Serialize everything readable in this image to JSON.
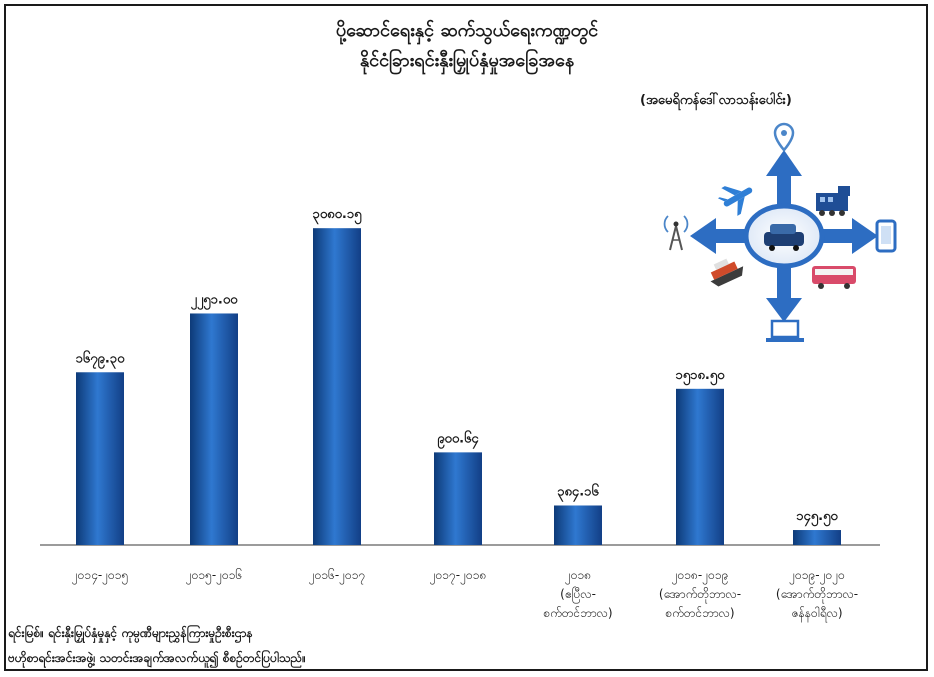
{
  "chart_data": {
    "type": "bar",
    "title_line1": "ပို့ဆောင်ရေးနှင့် ဆက်သွယ်ရေးကဏ္ဍတွင်",
    "title_line2": "နိုင်ငံခြားရင်းနှီးမြှုပ်နှံမှုအခြေအနေ",
    "unit": "(အမေရိကန်ဒေါ်လာသန်းပေါင်း)",
    "categories": [
      [
        "၂၀၁၄-၂၀၁၅"
      ],
      [
        "၂၀၁၅-၂၀၁၆"
      ],
      [
        "၂၀၁၆-၂၀၁၇"
      ],
      [
        "၂၀၁၇-၂၀၁၈"
      ],
      [
        "၂၀၁၈",
        "(ဧပြီလ-",
        "စက်တင်ဘာလ)"
      ],
      [
        "၂၀၁၈-၂၀၁၉",
        "(အောက်တိုဘာလ-",
        "စက်တင်ဘာလ)"
      ],
      [
        "၂၀၁၉-၂၀၂၀",
        "(အောက်တိုဘာလ-",
        "ဇန်နဝါရီလ)"
      ]
    ],
    "value_labels": [
      "၁၆၇၉.၃၀",
      "၂၂၅၁.၀၀",
      "၃၀၈၀.၁၅",
      "၉၀၀.၆၄",
      "၃၈၄.၁၆",
      "၁၅၁၈.၅၀",
      "၁၄၅.၅၀"
    ],
    "values": [
      1679.3,
      2251.0,
      3080.15,
      900.64,
      384.16,
      1518.5,
      145.5
    ],
    "ylim": [
      0,
      3500
    ],
    "bar_color": "#1f5fb0"
  },
  "footer": {
    "source_line1": "ရင်းမြစ်။ ရင်းနှီးမြှုပ်နှံမှုနှင့် ကုမ္ပဏီများညွှန်ကြားမှုဦးစီးဌာန",
    "source_line2": "ဗဟိုစာရင်းအင်းအဖွဲ့၊ သတင်းအချက်အလက်ယူ၍ စီစဉ်တင်ပြပါသည်။"
  },
  "icons": [
    "location-pin-icon",
    "airplane-icon",
    "train-icon",
    "antenna-tower-icon",
    "center-vehicles-icon",
    "smartphone-icon",
    "ship-icon",
    "bus-icon",
    "laptop-icon"
  ]
}
